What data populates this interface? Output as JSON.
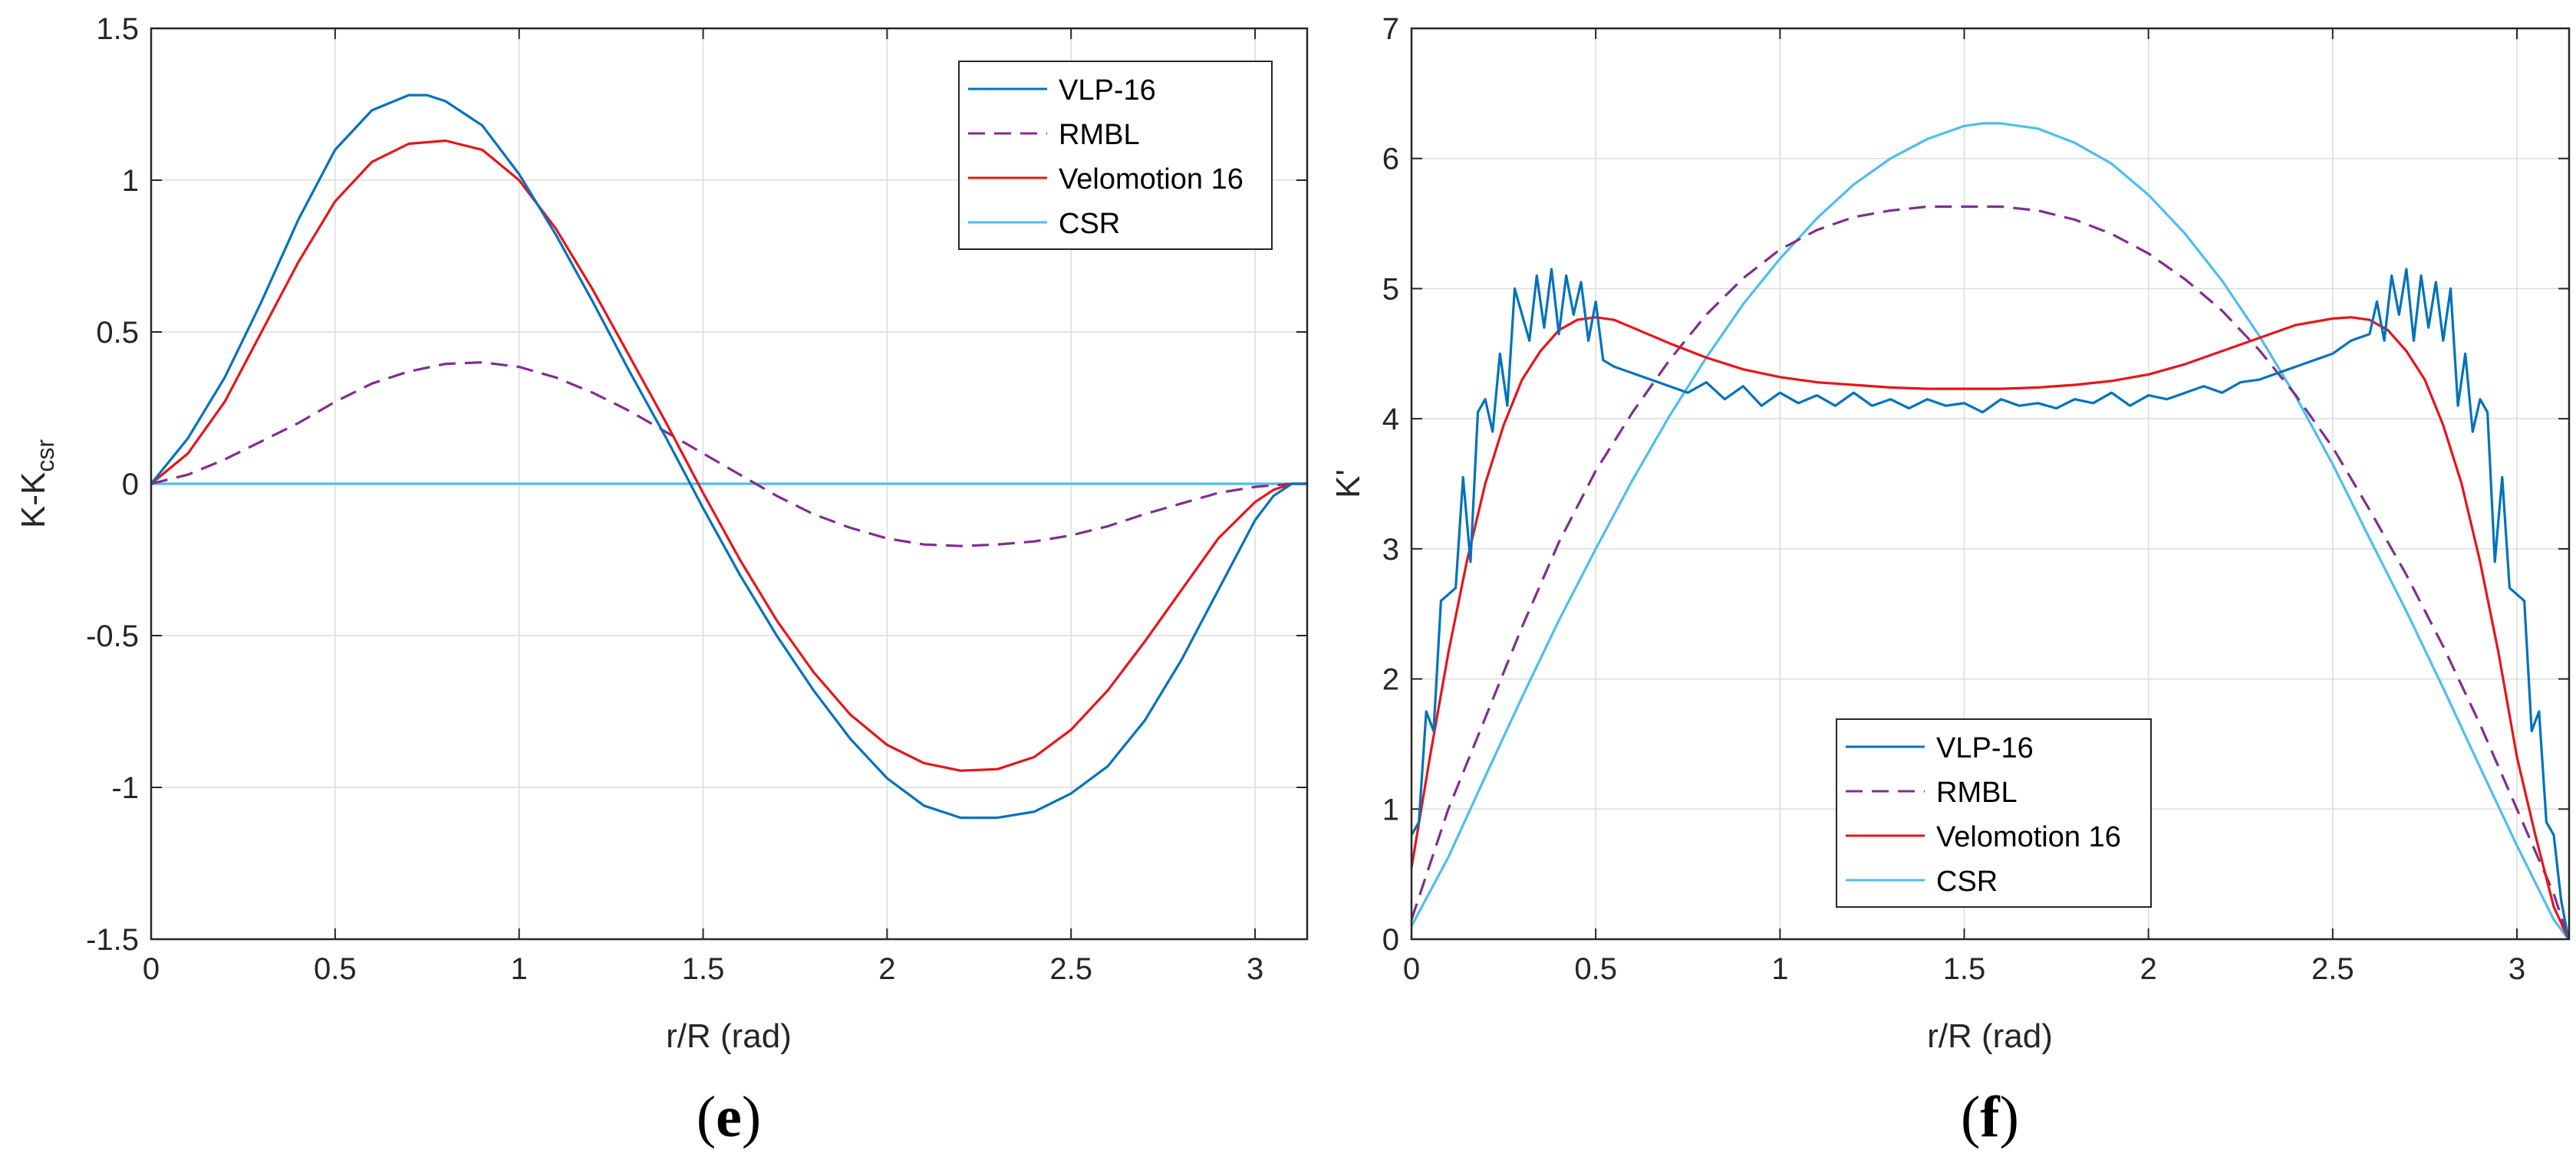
{
  "colors": {
    "vlp16": "#0072BD",
    "rmbl": "#7E2F8E",
    "velomotion16": "#E8141B",
    "csr": "#4DBEEE",
    "axis": "#262626",
    "grid": "#DCDCDC"
  },
  "chart_data": [
    {
      "type": "line",
      "panel": "e",
      "caption_open": "(",
      "caption_letter": "e",
      "caption_close": ")",
      "xlabel": "r/R (rad)",
      "ylabel_main": "K-K",
      "ylabel_sub": "csr",
      "xlim": [
        0,
        3.1416
      ],
      "ylim": [
        -1.5,
        1.5
      ],
      "xticks": [
        0,
        0.5,
        1,
        1.5,
        2,
        2.5,
        3
      ],
      "xtick_labels": [
        "0",
        "0.5",
        "1",
        "1.5",
        "2",
        "2.5",
        "3"
      ],
      "yticks": [
        -1.5,
        -1,
        -0.5,
        0,
        0.5,
        1,
        1.5
      ],
      "ytick_labels": [
        "-1.5",
        "-1",
        "-0.5",
        "0",
        "0.5",
        "1",
        "1.5"
      ],
      "grid": true,
      "legend_position": "top-right",
      "series": [
        {
          "name": "VLP-16",
          "color": "#0072BD",
          "dash": "solid",
          "x": [
            0,
            0.1,
            0.2,
            0.3,
            0.4,
            0.5,
            0.6,
            0.7,
            0.75,
            0.8,
            0.9,
            1.0,
            1.1,
            1.2,
            1.3,
            1.4,
            1.5,
            1.6,
            1.7,
            1.8,
            1.9,
            2.0,
            2.1,
            2.2,
            2.3,
            2.4,
            2.5,
            2.6,
            2.7,
            2.8,
            2.9,
            3.0,
            3.05,
            3.1,
            3.14
          ],
          "y": [
            0,
            0.15,
            0.35,
            0.6,
            0.87,
            1.1,
            1.23,
            1.28,
            1.28,
            1.26,
            1.18,
            1.02,
            0.82,
            0.6,
            0.37,
            0.15,
            -0.08,
            -0.3,
            -0.5,
            -0.68,
            -0.84,
            -0.97,
            -1.06,
            -1.1,
            -1.1,
            -1.08,
            -1.02,
            -0.93,
            -0.78,
            -0.58,
            -0.35,
            -0.12,
            -0.04,
            0.0,
            0.0
          ]
        },
        {
          "name": "RMBL",
          "color": "#7E2F8E",
          "dash": "dashed",
          "x": [
            0,
            0.1,
            0.2,
            0.3,
            0.4,
            0.5,
            0.6,
            0.7,
            0.8,
            0.9,
            1.0,
            1.1,
            1.2,
            1.3,
            1.4,
            1.5,
            1.6,
            1.7,
            1.8,
            1.9,
            2.0,
            2.1,
            2.2,
            2.3,
            2.4,
            2.5,
            2.6,
            2.7,
            2.8,
            2.9,
            3.0,
            3.1,
            3.14
          ],
          "y": [
            0,
            0.03,
            0.08,
            0.14,
            0.2,
            0.27,
            0.33,
            0.37,
            0.395,
            0.4,
            0.385,
            0.35,
            0.3,
            0.24,
            0.17,
            0.1,
            0.03,
            -0.04,
            -0.1,
            -0.145,
            -0.18,
            -0.2,
            -0.205,
            -0.2,
            -0.19,
            -0.17,
            -0.14,
            -0.1,
            -0.065,
            -0.03,
            -0.01,
            0.0,
            0.0
          ]
        },
        {
          "name": "Velomotion 16",
          "color": "#E8141B",
          "dash": "solid",
          "x": [
            0,
            0.1,
            0.2,
            0.3,
            0.4,
            0.5,
            0.6,
            0.7,
            0.8,
            0.9,
            1.0,
            1.1,
            1.2,
            1.3,
            1.4,
            1.5,
            1.6,
            1.7,
            1.8,
            1.9,
            2.0,
            2.1,
            2.2,
            2.3,
            2.4,
            2.5,
            2.6,
            2.7,
            2.8,
            2.9,
            3.0,
            3.05,
            3.1,
            3.14
          ],
          "y": [
            0,
            0.1,
            0.27,
            0.5,
            0.73,
            0.93,
            1.06,
            1.12,
            1.13,
            1.1,
            1.0,
            0.84,
            0.64,
            0.42,
            0.2,
            -0.03,
            -0.25,
            -0.45,
            -0.62,
            -0.76,
            -0.86,
            -0.92,
            -0.945,
            -0.94,
            -0.9,
            -0.81,
            -0.68,
            -0.52,
            -0.35,
            -0.18,
            -0.06,
            -0.02,
            0.0,
            0.0
          ]
        },
        {
          "name": "CSR",
          "color": "#4DBEEE",
          "dash": "solid",
          "x": [
            0,
            3.14
          ],
          "y": [
            0,
            0
          ]
        }
      ]
    },
    {
      "type": "line",
      "panel": "f",
      "caption_open": "(",
      "caption_letter": "f",
      "caption_close": ")",
      "xlabel": "r/R (rad)",
      "ylabel_main": "K'",
      "ylabel_sub": "",
      "xlim": [
        0,
        3.1416
      ],
      "ylim": [
        0,
        7
      ],
      "xticks": [
        0,
        0.5,
        1,
        1.5,
        2,
        2.5,
        3
      ],
      "xtick_labels": [
        "0",
        "0.5",
        "1",
        "1.5",
        "2",
        "2.5",
        "3"
      ],
      "yticks": [
        0,
        1,
        2,
        3,
        4,
        5,
        6,
        7
      ],
      "ytick_labels": [
        "0",
        "1",
        "2",
        "3",
        "4",
        "5",
        "6",
        "7"
      ],
      "grid": true,
      "legend_position": "bottom-center",
      "series": [
        {
          "name": "VLP-16",
          "color": "#0072BD",
          "dash": "solid",
          "x": [
            0,
            0.02,
            0.04,
            0.06,
            0.08,
            0.1,
            0.12,
            0.14,
            0.16,
            0.18,
            0.2,
            0.22,
            0.24,
            0.26,
            0.28,
            0.3,
            0.32,
            0.34,
            0.36,
            0.38,
            0.4,
            0.42,
            0.44,
            0.46,
            0.48,
            0.5,
            0.52,
            0.55,
            0.6,
            0.65,
            0.7,
            0.75,
            0.8,
            0.85,
            0.9,
            0.95,
            1.0,
            1.05,
            1.1,
            1.15,
            1.2,
            1.25,
            1.3,
            1.35,
            1.4,
            1.45,
            1.5,
            1.55,
            1.6,
            1.65,
            1.7,
            1.75,
            1.8,
            1.85,
            1.9,
            1.95,
            2.0,
            2.05,
            2.1,
            2.15,
            2.2,
            2.25,
            2.3,
            2.35,
            2.4,
            2.45,
            2.5,
            2.55,
            2.6,
            2.62,
            2.64,
            2.66,
            2.68,
            2.7,
            2.72,
            2.74,
            2.76,
            2.78,
            2.8,
            2.82,
            2.84,
            2.86,
            2.88,
            2.9,
            2.92,
            2.94,
            2.96,
            2.98,
            3.0,
            3.02,
            3.04,
            3.06,
            3.08,
            3.1,
            3.12,
            3.14
          ],
          "y": [
            0.8,
            0.9,
            1.75,
            1.6,
            2.6,
            2.65,
            2.7,
            3.55,
            2.9,
            4.05,
            4.15,
            3.9,
            4.5,
            4.1,
            5.0,
            4.8,
            4.6,
            5.1,
            4.7,
            5.15,
            4.65,
            5.1,
            4.8,
            5.05,
            4.6,
            4.9,
            4.45,
            4.4,
            4.35,
            4.3,
            4.25,
            4.2,
            4.28,
            4.15,
            4.25,
            4.1,
            4.2,
            4.12,
            4.18,
            4.1,
            4.2,
            4.1,
            4.15,
            4.08,
            4.15,
            4.1,
            4.12,
            4.05,
            4.15,
            4.1,
            4.12,
            4.08,
            4.15,
            4.12,
            4.2,
            4.1,
            4.18,
            4.15,
            4.2,
            4.25,
            4.2,
            4.28,
            4.3,
            4.35,
            4.4,
            4.45,
            4.5,
            4.6,
            4.65,
            4.9,
            4.6,
            5.1,
            4.8,
            5.15,
            4.6,
            5.1,
            4.7,
            5.05,
            4.6,
            5.0,
            4.1,
            4.5,
            3.9,
            4.15,
            4.05,
            2.9,
            3.55,
            2.7,
            2.65,
            2.6,
            1.6,
            1.75,
            0.9,
            0.8,
            0.3,
            0.0
          ]
        },
        {
          "name": "RMBL",
          "color": "#7E2F8E",
          "dash": "dashed",
          "x": [
            0,
            0.1,
            0.2,
            0.3,
            0.4,
            0.5,
            0.6,
            0.7,
            0.8,
            0.9,
            1.0,
            1.1,
            1.2,
            1.3,
            1.4,
            1.5,
            1.55,
            1.6,
            1.7,
            1.8,
            1.9,
            2.0,
            2.1,
            2.2,
            2.3,
            2.4,
            2.5,
            2.6,
            2.7,
            2.8,
            2.9,
            3.0,
            3.1,
            3.14
          ],
          "y": [
            0.15,
            1.0,
            1.7,
            2.4,
            3.05,
            3.6,
            4.05,
            4.45,
            4.8,
            5.08,
            5.3,
            5.45,
            5.55,
            5.6,
            5.63,
            5.63,
            5.63,
            5.63,
            5.6,
            5.53,
            5.42,
            5.27,
            5.07,
            4.83,
            4.53,
            4.18,
            3.78,
            3.3,
            2.8,
            2.25,
            1.65,
            1.0,
            0.35,
            0.0
          ]
        },
        {
          "name": "Velomotion 16",
          "color": "#E8141B",
          "dash": "solid",
          "x": [
            0,
            0.05,
            0.1,
            0.15,
            0.2,
            0.25,
            0.3,
            0.35,
            0.4,
            0.45,
            0.5,
            0.55,
            0.6,
            0.7,
            0.8,
            0.9,
            1.0,
            1.1,
            1.2,
            1.3,
            1.4,
            1.5,
            1.6,
            1.7,
            1.8,
            1.9,
            2.0,
            2.1,
            2.2,
            2.3,
            2.4,
            2.5,
            2.55,
            2.6,
            2.65,
            2.7,
            2.75,
            2.8,
            2.85,
            2.9,
            2.95,
            3.0,
            3.05,
            3.1,
            3.14
          ],
          "y": [
            0.55,
            1.4,
            2.2,
            2.9,
            3.5,
            3.95,
            4.3,
            4.52,
            4.68,
            4.76,
            4.78,
            4.76,
            4.7,
            4.58,
            4.47,
            4.38,
            4.32,
            4.28,
            4.26,
            4.24,
            4.23,
            4.23,
            4.23,
            4.24,
            4.26,
            4.29,
            4.34,
            4.42,
            4.52,
            4.62,
            4.72,
            4.77,
            4.78,
            4.76,
            4.68,
            4.52,
            4.3,
            3.95,
            3.5,
            2.9,
            2.2,
            1.4,
            0.8,
            0.25,
            0.0
          ]
        },
        {
          "name": "CSR",
          "color": "#4DBEEE",
          "dash": "solid",
          "x": [
            0,
            0.1,
            0.2,
            0.3,
            0.4,
            0.5,
            0.6,
            0.7,
            0.8,
            0.9,
            1.0,
            1.1,
            1.2,
            1.3,
            1.4,
            1.5,
            1.55,
            1.6,
            1.7,
            1.8,
            1.9,
            2.0,
            2.1,
            2.2,
            2.3,
            2.4,
            2.5,
            2.6,
            2.7,
            2.8,
            2.9,
            3.0,
            3.1,
            3.14
          ],
          "y": [
            0.1,
            0.63,
            1.25,
            1.86,
            2.45,
            3.0,
            3.53,
            4.02,
            4.47,
            4.88,
            5.23,
            5.54,
            5.8,
            6.0,
            6.15,
            6.25,
            6.27,
            6.27,
            6.23,
            6.12,
            5.96,
            5.72,
            5.42,
            5.06,
            4.64,
            4.17,
            3.65,
            3.08,
            2.52,
            1.93,
            1.32,
            0.72,
            0.15,
            0.0
          ]
        }
      ]
    }
  ]
}
